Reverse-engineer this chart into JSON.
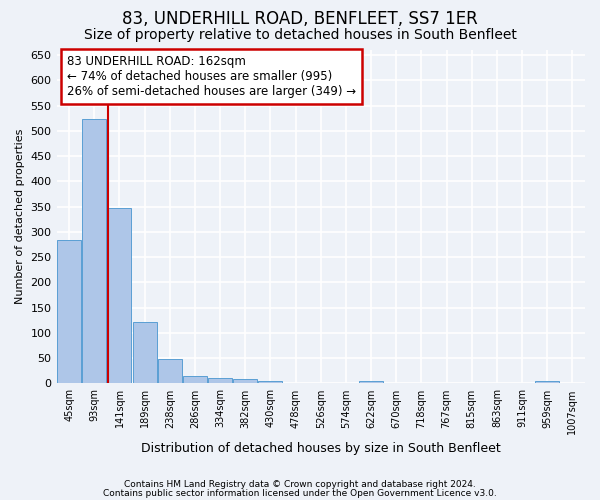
{
  "title": "83, UNDERHILL ROAD, BENFLEET, SS7 1ER",
  "subtitle": "Size of property relative to detached houses in South Benfleet",
  "xlabel": "Distribution of detached houses by size in South Benfleet",
  "ylabel": "Number of detached properties",
  "categories": [
    "45sqm",
    "93sqm",
    "141sqm",
    "189sqm",
    "238sqm",
    "286sqm",
    "334sqm",
    "382sqm",
    "430sqm",
    "478sqm",
    "526sqm",
    "574sqm",
    "622sqm",
    "670sqm",
    "718sqm",
    "767sqm",
    "815sqm",
    "863sqm",
    "911sqm",
    "959sqm",
    "1007sqm"
  ],
  "values": [
    283,
    524,
    347,
    122,
    48,
    15,
    10,
    9,
    5,
    0,
    0,
    0,
    5,
    0,
    0,
    0,
    0,
    0,
    0,
    5,
    0
  ],
  "bar_color": "#aec6e8",
  "bar_edge_color": "#5a9fd4",
  "line_x_index": 2,
  "annotation_title": "83 UNDERHILL ROAD: 162sqm",
  "annotation_line1": "← 74% of detached houses are smaller (995)",
  "annotation_line2": "26% of semi-detached houses are larger (349) →",
  "annotation_box_color": "#ffffff",
  "annotation_box_edge": "#cc0000",
  "line_color": "#cc0000",
  "footer_line1": "Contains HM Land Registry data © Crown copyright and database right 2024.",
  "footer_line2": "Contains public sector information licensed under the Open Government Licence v3.0.",
  "ylim": [
    0,
    660
  ],
  "yticks": [
    0,
    50,
    100,
    150,
    200,
    250,
    300,
    350,
    400,
    450,
    500,
    550,
    600,
    650
  ],
  "background_color": "#eef2f8",
  "plot_bg_color": "#eef2f8",
  "grid_color": "#ffffff",
  "title_fontsize": 12,
  "subtitle_fontsize": 10,
  "annotation_fontsize": 8.5,
  "ylabel_fontsize": 8,
  "xlabel_fontsize": 9,
  "footer_fontsize": 6.5
}
